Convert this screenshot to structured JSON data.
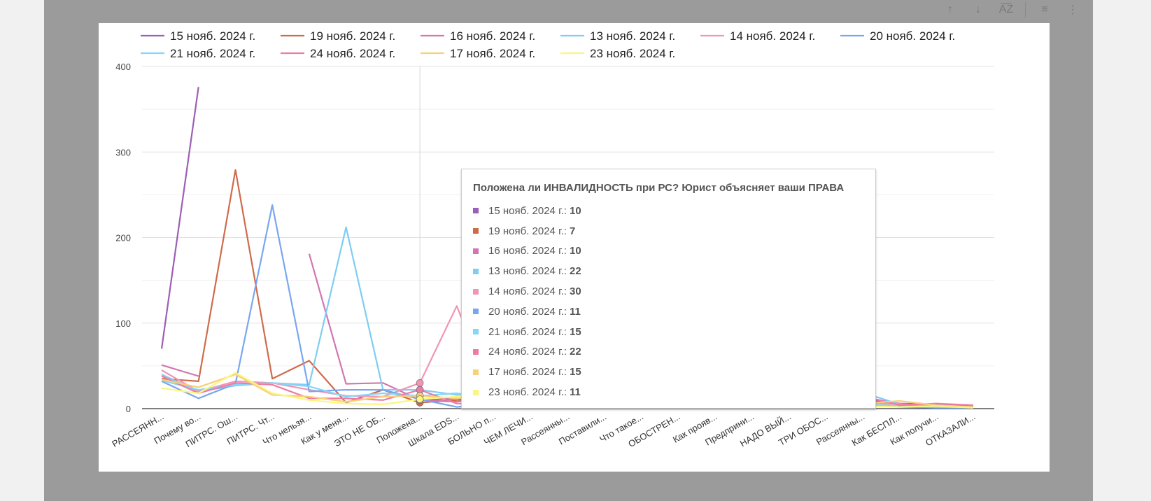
{
  "toolbar": {
    "buttons": [
      {
        "name": "sort-up-icon",
        "glyph": "↑"
      },
      {
        "name": "sort-down-icon",
        "glyph": "↓"
      },
      {
        "name": "sort-az-icon",
        "glyph": "A͞Z"
      },
      {
        "name": "filter-icon",
        "glyph": "≡"
      },
      {
        "name": "more-vert-icon",
        "glyph": "⋮"
      }
    ]
  },
  "chart_data": {
    "type": "line",
    "title": "",
    "xlabel": "",
    "ylabel": "",
    "ylim": [
      0,
      400
    ],
    "yticks": [
      "0",
      "100",
      "200",
      "300",
      "400"
    ],
    "grid": true,
    "legend_position": "top",
    "categories": [
      "РАССЕЯНН...",
      "Почему во...",
      "ПИТРС. Ош...",
      "ПИТРС. Чт...",
      "Что нельзя...",
      "Как у меня...",
      "ЭТО НЕ ОБ...",
      "Положена...",
      "Шкала EDS...",
      "БОЛЬНО п...",
      "ЧЕМ ЛЕЧИ...",
      "Рассеянны...",
      "Поставили...",
      "Что такое...",
      "ОБОСТРЕН...",
      "Как прояв...",
      "Предприни...",
      "НАДО ВЫЙ...",
      "ТРИ ОБОС...",
      "Рассеянны...",
      "Как БЕСПЛ...",
      "Как получи...",
      "ОТКАЗАЛИ..."
    ],
    "series": [
      {
        "name": "15 нояб. 2024 г.",
        "color": "#9c5fb5",
        "values": [
          70,
          376,
          null,
          null,
          null,
          null,
          null,
          10,
          12,
          8,
          10,
          15,
          9,
          8,
          11,
          9,
          14,
          7,
          9,
          10,
          6,
          5,
          3
        ]
      },
      {
        "name": "19 нояб. 2024 г.",
        "color": "#cf6b4b",
        "values": [
          35,
          32,
          279,
          35,
          56,
          7,
          22,
          7,
          10,
          12,
          8,
          7,
          6,
          5,
          7,
          4,
          6,
          2,
          6,
          14,
          4,
          3,
          2
        ]
      },
      {
        "name": "16 нояб. 2024 г.",
        "color": "#d276b0",
        "values": [
          51,
          38,
          null,
          null,
          181,
          29,
          30,
          10,
          8,
          14,
          12,
          10,
          9,
          8,
          6,
          7,
          5,
          4,
          8,
          13,
          6,
          2,
          2
        ]
      },
      {
        "name": "13 нояб. 2024 г.",
        "color": "#7ecdf2",
        "values": [
          40,
          20,
          27,
          30,
          28,
          212,
          22,
          22,
          16,
          18,
          10,
          8,
          16,
          10,
          8,
          12,
          6,
          12,
          6,
          19,
          5,
          3,
          2
        ]
      },
      {
        "name": "14 нояб. 2024 г.",
        "color": "#f195b4",
        "values": [
          45,
          20,
          32,
          30,
          22,
          15,
          14,
          30,
          120,
          12,
          8,
          9,
          10,
          8,
          6,
          5,
          4,
          4,
          6,
          7,
          5,
          3,
          2
        ]
      },
      {
        "name": "20 нояб. 2024 г.",
        "color": "#7aa6f0",
        "values": [
          32,
          12,
          29,
          238,
          20,
          22,
          22,
          11,
          2,
          6,
          10,
          8,
          6,
          7,
          4,
          5,
          3,
          2,
          5,
          4,
          2,
          1,
          1
        ]
      },
      {
        "name": "21 нояб. 2024 г.",
        "color": "#85d6f7",
        "values": [
          33,
          22,
          28,
          30,
          26,
          14,
          18,
          15,
          18,
          10,
          8,
          6,
          5,
          6,
          8,
          4,
          3,
          6,
          4,
          5,
          3,
          2,
          1
        ]
      },
      {
        "name": "24 нояб. 2024 г.",
        "color": "#ef7aa6",
        "values": [
          38,
          18,
          30,
          28,
          12,
          12,
          10,
          22,
          6,
          5,
          8,
          5,
          10,
          8,
          6,
          3,
          4,
          2,
          6,
          15,
          4,
          6,
          4
        ]
      },
      {
        "name": "17 нояб. 2024 г.",
        "color": "#f9cf78",
        "values": [
          34,
          25,
          40,
          16,
          14,
          8,
          14,
          15,
          12,
          14,
          10,
          10,
          6,
          10,
          14,
          8,
          6,
          4,
          8,
          6,
          9,
          4,
          2
        ]
      },
      {
        "name": "23 нояб. 2024 г.",
        "color": "#fbf67d",
        "values": [
          24,
          18,
          42,
          18,
          10,
          6,
          5,
          11,
          14,
          12,
          8,
          6,
          8,
          5,
          12,
          6,
          5,
          3,
          4,
          3,
          2,
          3,
          1
        ]
      }
    ]
  },
  "tooltip": {
    "title": "Положена ли ИНВАЛИДНОСТЬ при РС? Юрист объясняет ваши ПРАВА",
    "rows": [
      {
        "label": "15 нояб. 2024 г.:",
        "value": "10",
        "color": "#9c5fb5"
      },
      {
        "label": "19 нояб. 2024 г.:",
        "value": "7",
        "color": "#cf6b4b"
      },
      {
        "label": "16 нояб. 2024 г.:",
        "value": "10",
        "color": "#d276b0"
      },
      {
        "label": "13 нояб. 2024 г.:",
        "value": "22",
        "color": "#7ecdf2"
      },
      {
        "label": "14 нояб. 2024 г.:",
        "value": "30",
        "color": "#f195b4"
      },
      {
        "label": "20 нояб. 2024 г.:",
        "value": "11",
        "color": "#7aa6f0"
      },
      {
        "label": "21 нояб. 2024 г.:",
        "value": "15",
        "color": "#85d6f7"
      },
      {
        "label": "24 нояб. 2024 г.:",
        "value": "22",
        "color": "#ef7aa6"
      },
      {
        "label": "17 нояб. 2024 г.:",
        "value": "15",
        "color": "#f9cf78"
      },
      {
        "label": "23 нояб. 2024 г.:",
        "value": "11",
        "color": "#fbf67d"
      }
    ]
  },
  "hover_index": 7
}
